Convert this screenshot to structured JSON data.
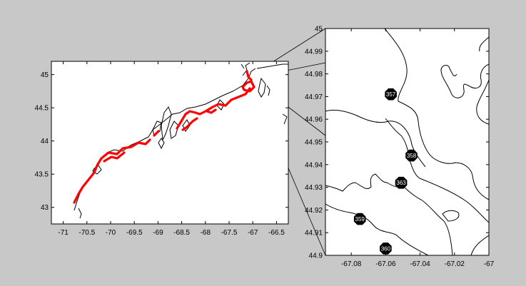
{
  "colors": {
    "background": "#c8c8c8",
    "axes_background": "#ffffff",
    "coastline": "#000000",
    "track": "#ff0000",
    "station_marker": "#000000",
    "station_label": "#ffffff"
  },
  "overview_map": {
    "x_ticks": [
      "-71",
      "-70.5",
      "-70",
      "-69.5",
      "-69",
      "-68.5",
      "-68",
      "-67.5",
      "-67",
      "-66.5"
    ],
    "y_ticks": [
      "43",
      "43.5",
      "44",
      "44.5",
      "45"
    ],
    "xlim": [
      -71.25,
      -66.25
    ],
    "ylim": [
      42.75,
      45.2
    ]
  },
  "zoom_map": {
    "x_ticks": [
      "-67.08",
      "-67.06",
      "-67.04",
      "-67.02",
      "-67"
    ],
    "y_ticks": [
      "44.9",
      "44.91",
      "44.92",
      "44.93",
      "44.94",
      "44.95",
      "44.96",
      "44.97",
      "44.98",
      "44.99",
      "45"
    ],
    "xlim": [
      -67.095,
      -67.0
    ],
    "ylim": [
      44.9,
      45.0
    ],
    "stations": [
      {
        "id": "357",
        "lon": -67.057,
        "lat": 44.971
      },
      {
        "id": "358",
        "lon": -67.045,
        "lat": 44.944
      },
      {
        "id": "363",
        "lon": -67.051,
        "lat": 44.932
      },
      {
        "id": "359",
        "lon": -67.075,
        "lat": 44.916
      },
      {
        "id": "360",
        "lon": -67.06,
        "lat": 44.903
      }
    ]
  }
}
